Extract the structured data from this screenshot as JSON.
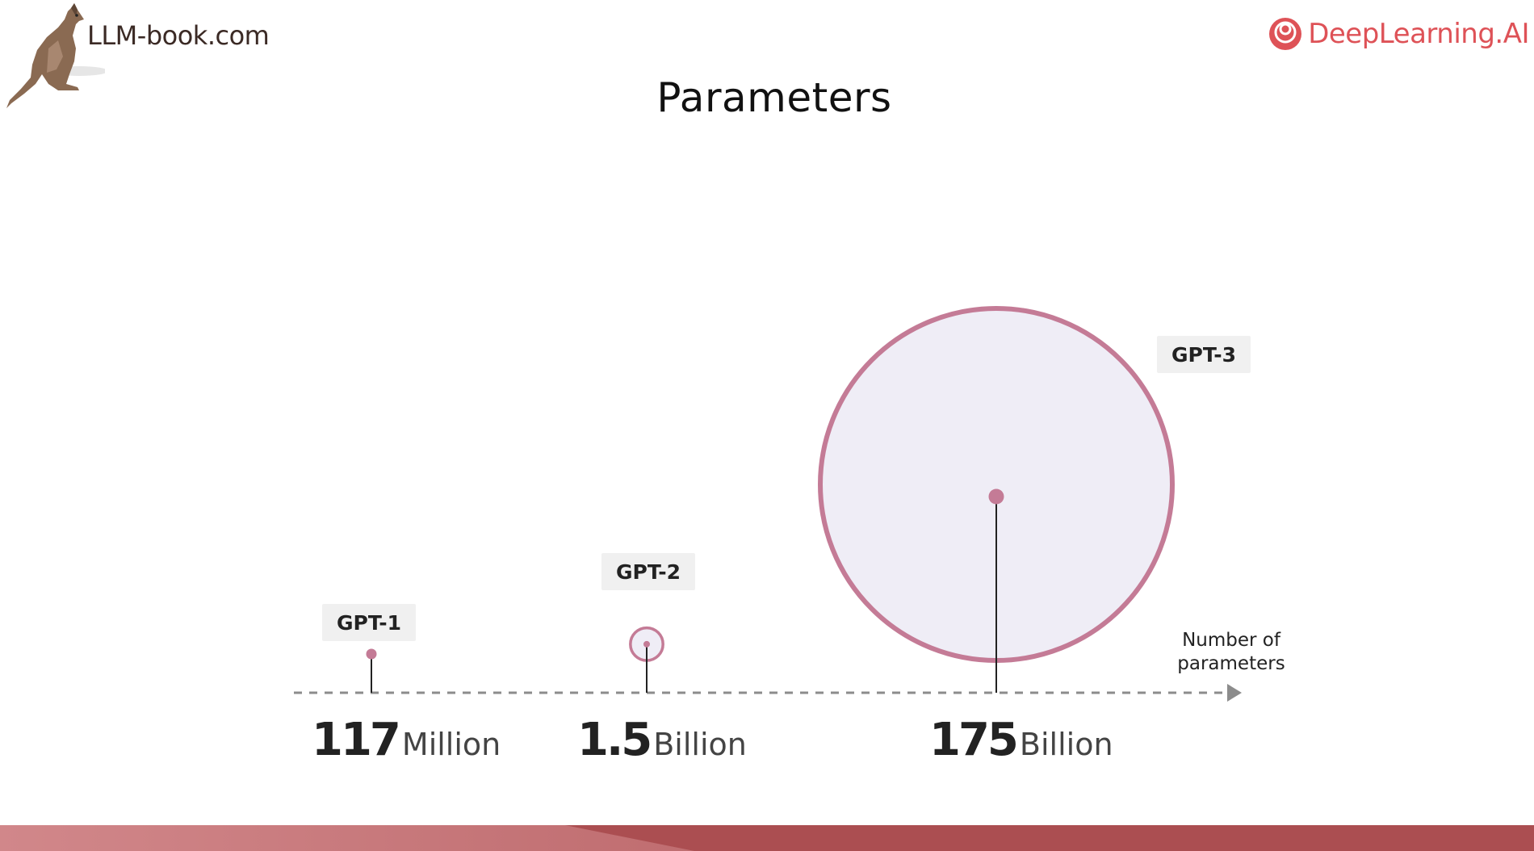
{
  "header": {
    "site_label": "LLM-book.com",
    "brand_label": "DeepLearning.AI",
    "title": "Parameters"
  },
  "colors": {
    "accent": "#c47b96",
    "circle_fill": "#efedf6",
    "axis": "#8c8c8c",
    "label_box": "#f0f0f0",
    "brand": "#de5257",
    "bar_left": "#d1878a",
    "bar_right": "#ab4e51"
  },
  "icons": {
    "site_logo": "kangaroo-icon",
    "brand_logo": "deeplearning-ai-logo-icon"
  },
  "chart_data": {
    "type": "scatter",
    "title": "Parameters",
    "xlabel": "Number of parameters",
    "ylabel": "",
    "encoding": "circle area proportional to parameter count",
    "models": [
      {
        "name": "GPT-1",
        "value": 117,
        "unit": "Million",
        "params": 117000000
      },
      {
        "name": "GPT-2",
        "value": 1.5,
        "unit": "Billion",
        "params": 1500000000
      },
      {
        "name": "GPT-3",
        "value": 175,
        "unit": "Billion",
        "params": 175000000000
      }
    ]
  }
}
